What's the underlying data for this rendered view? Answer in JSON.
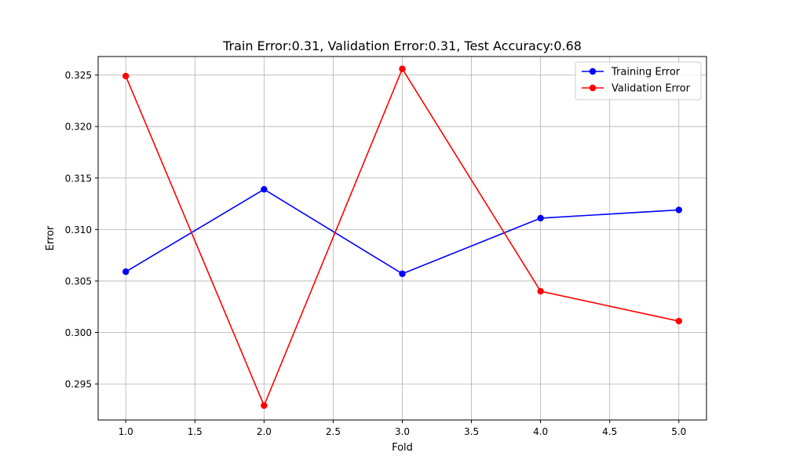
{
  "chart_data": {
    "type": "line",
    "title": "Train Error:0.31, Validation Error:0.31, Test Accuracy:0.68",
    "xlabel": "Fold",
    "ylabel": "Error",
    "x": [
      1,
      2,
      3,
      4,
      5
    ],
    "xlim": [
      0.8,
      5.2
    ],
    "ylim": [
      0.2915,
      0.3268
    ],
    "x_ticks": [
      1.0,
      1.5,
      2.0,
      2.5,
      3.0,
      3.5,
      4.0,
      4.5,
      5.0
    ],
    "x_tick_labels": [
      "1.0",
      "1.5",
      "2.0",
      "2.5",
      "3.0",
      "3.5",
      "4.0",
      "4.5",
      "5.0"
    ],
    "y_ticks": [
      0.295,
      0.3,
      0.305,
      0.31,
      0.315,
      0.32,
      0.325
    ],
    "y_tick_labels": [
      "0.295",
      "0.300",
      "0.305",
      "0.310",
      "0.315",
      "0.320",
      "0.325"
    ],
    "grid": true,
    "legend_position": "upper right",
    "series": [
      {
        "name": "Training Error",
        "color": "#0000ff",
        "marker": "circle",
        "values": [
          0.3059,
          0.3139,
          0.3057,
          0.3111,
          0.3119
        ]
      },
      {
        "name": "Validation Error",
        "color": "#ff0000",
        "marker": "circle",
        "values": [
          0.3249,
          0.2929,
          0.3256,
          0.304,
          0.3011
        ]
      }
    ]
  }
}
